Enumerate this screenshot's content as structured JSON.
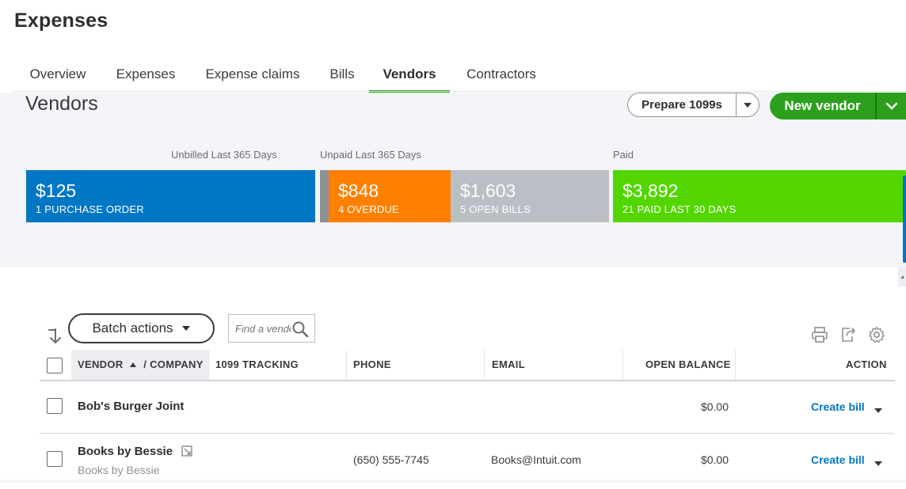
{
  "page_title": "Expenses",
  "tabs": [
    {
      "label": "Overview"
    },
    {
      "label": "Expenses"
    },
    {
      "label": "Expense claims"
    },
    {
      "label": "Bills"
    },
    {
      "label": "Vendors",
      "active": true
    },
    {
      "label": "Contractors"
    }
  ],
  "section_title": "Vendors",
  "buttons": {
    "prepare_1099": "Prepare 1099s",
    "new_vendor": "New vendor",
    "batch_actions": "Batch actions"
  },
  "summary": {
    "labels": {
      "unbilled": "Unbilled Last 365 Days",
      "unpaid": "Unpaid Last 365 Days",
      "paid": "Paid"
    },
    "bars": [
      {
        "amount": "$125",
        "caption": "1 PURCHASE ORDER",
        "color": "#0077c5"
      },
      {
        "amount": "$848",
        "caption": "4 OVERDUE",
        "color": "#ff8000"
      },
      {
        "amount": "$1,603",
        "caption": "5 OPEN BILLS",
        "color": "#babec5"
      },
      {
        "amount": "$3,892",
        "caption": "21 PAID LAST 30 DAYS",
        "color": "#53d600"
      }
    ]
  },
  "search": {
    "placeholder": "Find a vendor"
  },
  "table": {
    "headers": {
      "vendor": "VENDOR",
      "company": "/ COMPANY",
      "tracking": "1099 TRACKING",
      "phone": "PHONE",
      "email": "EMAIL",
      "open_balance": "OPEN BALANCE",
      "action": "ACTION"
    },
    "rows": [
      {
        "name": "Bob's Burger Joint",
        "company": "",
        "phone": "",
        "email": "",
        "open_balance": "$0.00",
        "action": "Create bill"
      },
      {
        "name": "Books by Bessie",
        "company": "Books by Bessie",
        "phone": "(650) 555-7745",
        "email": "Books@Intuit.com",
        "open_balance": "$0.00",
        "action": "Create bill"
      }
    ]
  }
}
